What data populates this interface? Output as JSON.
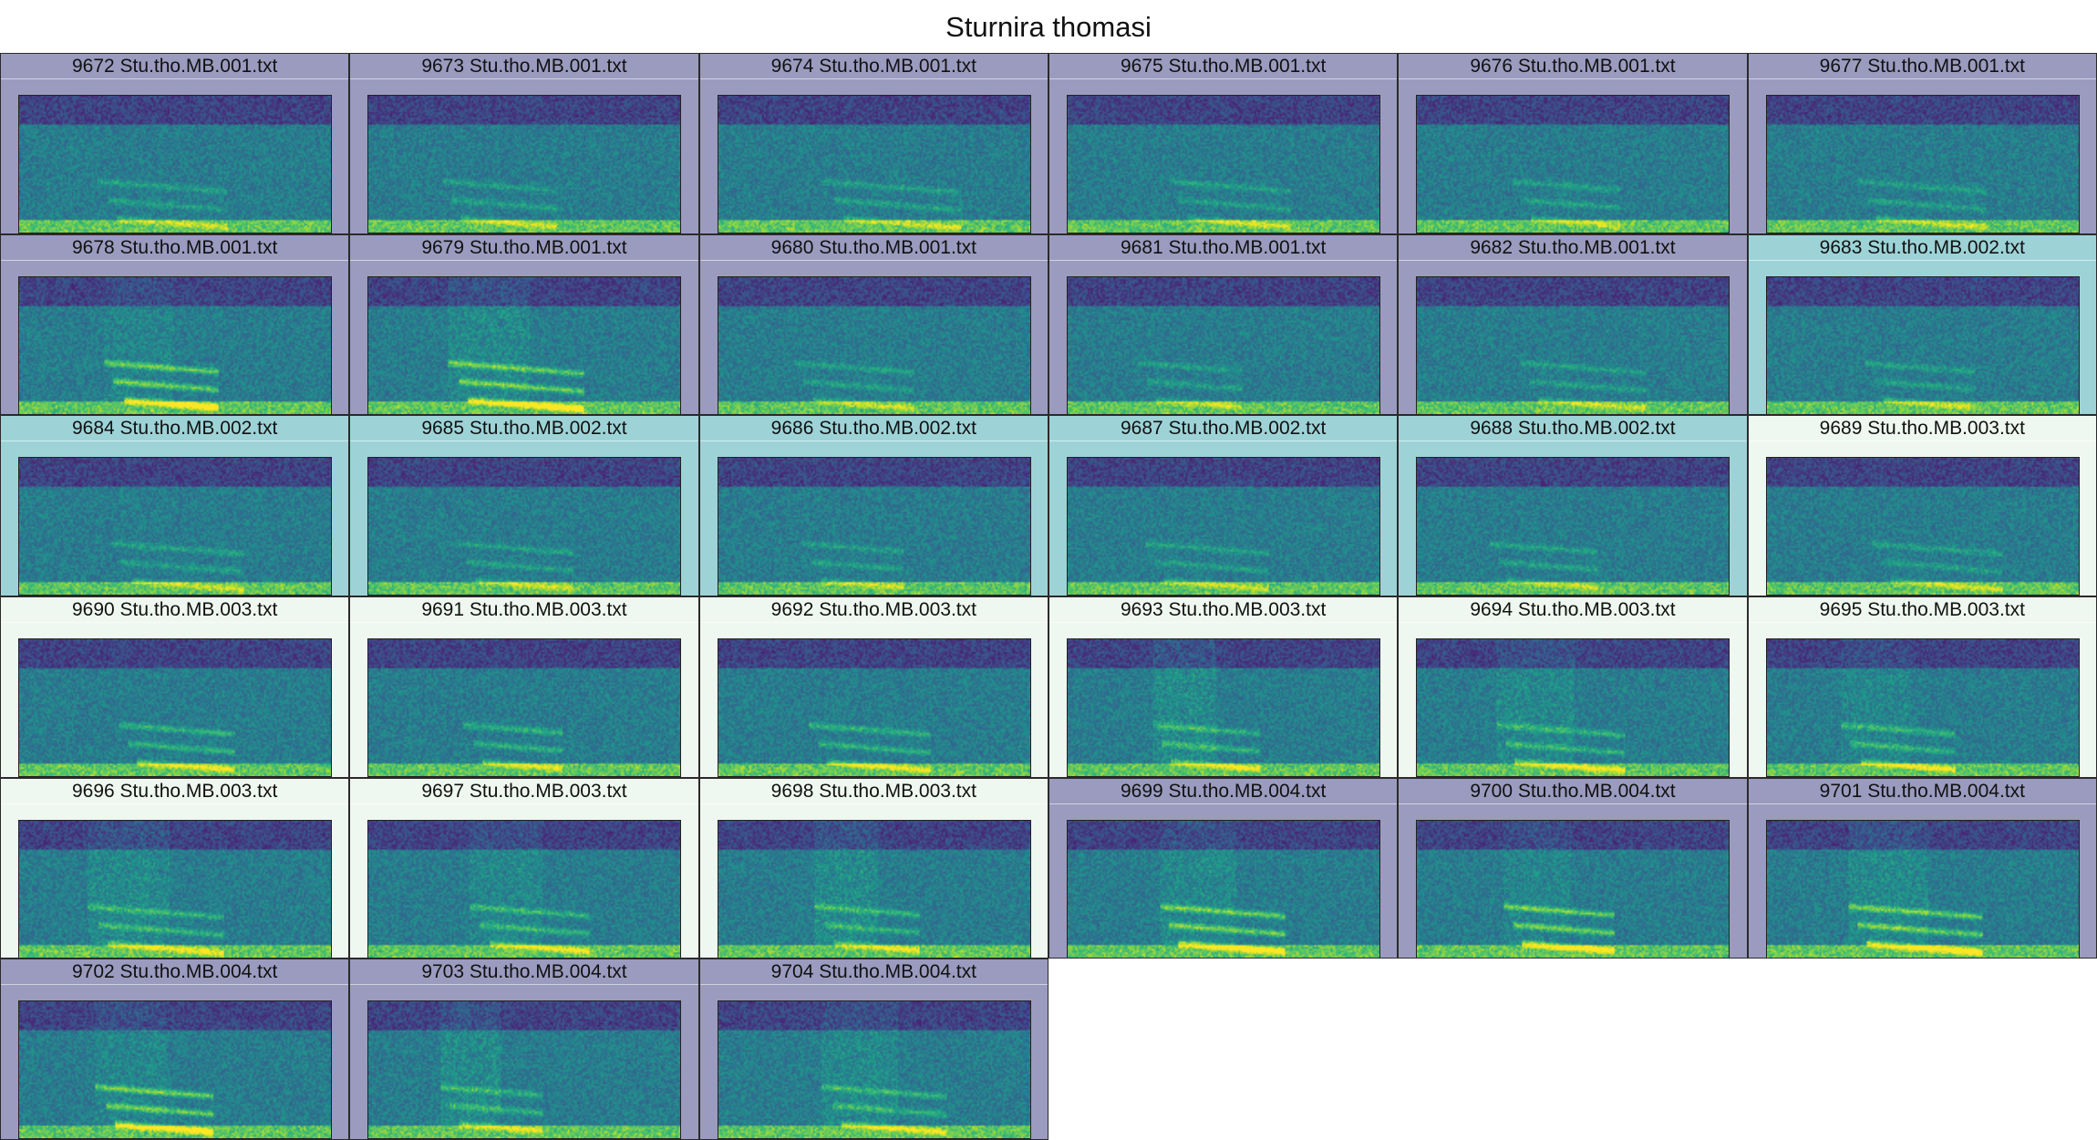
{
  "title": "Sturnira thomasi",
  "group_colors": {
    "MB.001": "#9b9bc0",
    "MB.002": "#9dd3d7",
    "MB.003": "#eff8f0",
    "MB.004": "#9b9bc0"
  },
  "colormap": "viridis",
  "panels": [
    {
      "label": "9672 Stu.tho.MB.001.txt",
      "group": "MB.001"
    },
    {
      "label": "9673 Stu.tho.MB.001.txt",
      "group": "MB.001"
    },
    {
      "label": "9674 Stu.tho.MB.001.txt",
      "group": "MB.001"
    },
    {
      "label": "9675 Stu.tho.MB.001.txt",
      "group": "MB.001"
    },
    {
      "label": "9676 Stu.tho.MB.001.txt",
      "group": "MB.001"
    },
    {
      "label": "9677 Stu.tho.MB.001.txt",
      "group": "MB.001"
    },
    {
      "label": "9678 Stu.tho.MB.001.txt",
      "group": "MB.001"
    },
    {
      "label": "9679 Stu.tho.MB.001.txt",
      "group": "MB.001"
    },
    {
      "label": "9680 Stu.tho.MB.001.txt",
      "group": "MB.001"
    },
    {
      "label": "9681 Stu.tho.MB.001.txt",
      "group": "MB.001"
    },
    {
      "label": "9682 Stu.tho.MB.001.txt",
      "group": "MB.001"
    },
    {
      "label": "9683 Stu.tho.MB.002.txt",
      "group": "MB.002"
    },
    {
      "label": "9684 Stu.tho.MB.002.txt",
      "group": "MB.002"
    },
    {
      "label": "9685 Stu.tho.MB.002.txt",
      "group": "MB.002"
    },
    {
      "label": "9686 Stu.tho.MB.002.txt",
      "group": "MB.002"
    },
    {
      "label": "9687 Stu.tho.MB.002.txt",
      "group": "MB.002"
    },
    {
      "label": "9688 Stu.tho.MB.002.txt",
      "group": "MB.002"
    },
    {
      "label": "9689 Stu.tho.MB.003.txt",
      "group": "MB.003"
    },
    {
      "label": "9690 Stu.tho.MB.003.txt",
      "group": "MB.003"
    },
    {
      "label": "9691 Stu.tho.MB.003.txt",
      "group": "MB.003"
    },
    {
      "label": "9692 Stu.tho.MB.003.txt",
      "group": "MB.003"
    },
    {
      "label": "9693 Stu.tho.MB.003.txt",
      "group": "MB.003"
    },
    {
      "label": "9694 Stu.tho.MB.003.txt",
      "group": "MB.003"
    },
    {
      "label": "9695 Stu.tho.MB.003.txt",
      "group": "MB.003"
    },
    {
      "label": "9696 Stu.tho.MB.003.txt",
      "group": "MB.003"
    },
    {
      "label": "9697 Stu.tho.MB.003.txt",
      "group": "MB.003"
    },
    {
      "label": "9698 Stu.tho.MB.003.txt",
      "group": "MB.003"
    },
    {
      "label": "9699 Stu.tho.MB.004.txt",
      "group": "MB.004"
    },
    {
      "label": "9700 Stu.tho.MB.004.txt",
      "group": "MB.004"
    },
    {
      "label": "9701 Stu.tho.MB.004.txt",
      "group": "MB.004"
    },
    {
      "label": "9702 Stu.tho.MB.004.txt",
      "group": "MB.004"
    },
    {
      "label": "9703 Stu.tho.MB.004.txt",
      "group": "MB.004"
    },
    {
      "label": "9704 Stu.tho.MB.004.txt",
      "group": "MB.004"
    }
  ]
}
